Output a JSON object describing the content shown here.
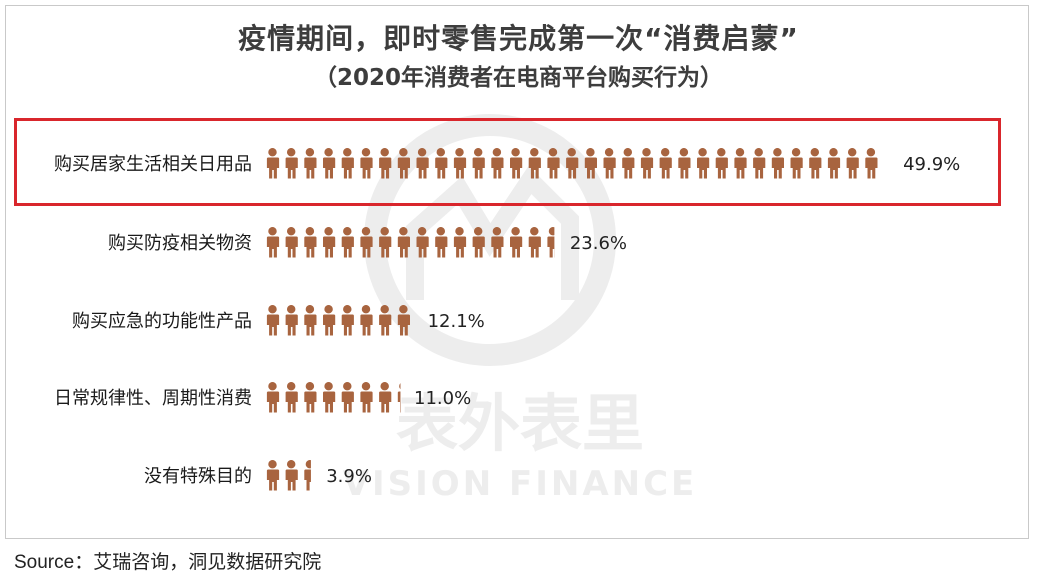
{
  "chart_data": {
    "type": "pictograph-bar",
    "title": "疫情期间，即时零售完成第一次“消费启蒙”",
    "subtitle": "（2020年消费者在电商平台购买行为）",
    "categories": [
      "购买居家生活相关日用品",
      "购买防疫相关物资",
      "购买应急的功能性产品",
      "日常规律性、周期性消费",
      "没有特殊目的"
    ],
    "values": [
      49.9,
      23.6,
      12.1,
      11.0,
      3.9
    ],
    "value_labels": [
      "49.9%",
      "23.6%",
      "12.1%",
      "11.0%",
      "3.9%"
    ],
    "unit": "%",
    "icon": "person-icon",
    "highlighted_category": "购买居家生活相关日用品"
  },
  "source": "Source：艾瑞咨询，洞见数据研究院",
  "watermark": {
    "text_cn": "表外表里",
    "text_en": "VISION FINANCE"
  },
  "colors": {
    "icon": "#a8643f",
    "highlight_border": "#d9262c",
    "text": "#222222",
    "watermark": "#ececec"
  }
}
